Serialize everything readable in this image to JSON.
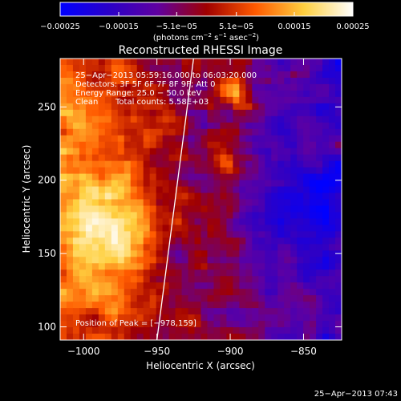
{
  "chart_data": {
    "type": "heatmap",
    "title": "Reconstructed RHESSI Image",
    "xlabel": "Heliocentric X (arcsec)",
    "ylabel": "Heliocentric Y (arcsec)",
    "xlim": [
      -1016,
      -824
    ],
    "ylim": [
      91,
      283
    ],
    "xticks": [
      -1000,
      -950,
      -900,
      -850
    ],
    "yticks": [
      100,
      150,
      200,
      250
    ],
    "xtick_labels": [
      "−1000",
      "−950",
      "−900",
      "−850"
    ],
    "ytick_labels": [
      "100",
      "150",
      "200",
      "250"
    ],
    "colorbar": {
      "range": [
        -0.00025,
        0.00025
      ],
      "ticks": [
        -0.00025,
        -0.00015,
        -5.1e-05,
        5.1e-05,
        0.00015,
        0.00025
      ],
      "tick_labels": [
        "−0.00025",
        "−0.00015",
        "−5.1e−05",
        "5.1e−05",
        "0.00015",
        "0.00025"
      ],
      "colors": [
        "#0000ff",
        "#2a00c8",
        "#6000a0",
        "#a00000",
        "#ff5a00",
        "#ffd040",
        "#ffffff"
      ]
    },
    "unit_label": {
      "prefix": "(photons cm",
      "exp1": "−2",
      "mid1": " s",
      "exp2": "−1",
      "mid2": " asec",
      "exp3": "−2",
      "suffix": ")"
    },
    "annotations": {
      "time_range": "25−Apr−2013 05:59:16.000 to 06:03:20.000",
      "detectors": "Detectors: 3F 5F 6F 7F 8F 9F; Att 0",
      "energy": "Energy Range: 25.0 − 50.0 keV",
      "method": "Clean",
      "total_counts": "Total counts: 5.58E+03",
      "peak": "Position of Peak = [−978,159]"
    },
    "peak_position": [
      -978,
      159
    ],
    "limb_line": {
      "x_top": -925,
      "x_bottom": -950
    },
    "footer_timestamp": "25−Apr−2013 07:43"
  }
}
